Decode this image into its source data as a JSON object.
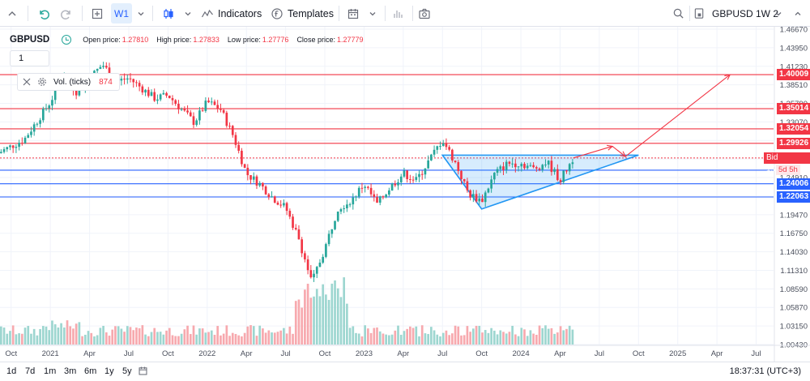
{
  "toolbar": {
    "timeframe": "W1",
    "indicators_label": "Indicators",
    "templates_label": "Templates",
    "symbol_box": "GBPUSD 1W 2"
  },
  "legend": {
    "symbol": "GBPUSD",
    "open_label": "Open price:",
    "open_value": "1.27810",
    "high_label": "High price:",
    "high_value": "1.27833",
    "low_label": "Low price:",
    "low_value": "1.27776",
    "close_label": "Close price:",
    "close_value": "1.27779",
    "multiplier": "1"
  },
  "volume_pane": {
    "label": "Vol. (ticks)",
    "value": "874"
  },
  "price_tags": [
    {
      "text": "1.40009",
      "price": 1.40009,
      "color": "#f23645"
    },
    {
      "text": "1.35014",
      "price": 1.35014,
      "color": "#f23645"
    },
    {
      "text": "1.32054",
      "price": 1.32054,
      "color": "#f23645"
    },
    {
      "text": "1.29926",
      "price": 1.29926,
      "color": "#f23645"
    },
    {
      "text": "1.24006",
      "price": 1.24006,
      "color": "#2962ff"
    },
    {
      "text": "1.22063",
      "price": 1.22063,
      "color": "#2962ff"
    }
  ],
  "bid_tag": "Bid 1.27779",
  "countdown": "5d 5h",
  "bottom": {
    "ranges": [
      "1d",
      "7d",
      "1m",
      "3m",
      "6m",
      "1y",
      "5y"
    ],
    "time": "18:37:31 (UTC+3)"
  },
  "colors": {
    "up": "#26a69a",
    "down": "#f23645",
    "resistance": "#f23645",
    "support": "#2962ff"
  },
  "chart_data": {
    "type": "candlestick",
    "symbol": "GBPUSD",
    "timeframe": "W1",
    "y_ticks": [
      "1.46670",
      "1.43950",
      "1.41230",
      "1.38510",
      "1.35790",
      "1.33070",
      "1.30350",
      "1.27630",
      "1.24910",
      "1.22190",
      "1.19470",
      "1.16750",
      "1.14030",
      "1.11310",
      "1.08590",
      "1.05870",
      "1.03150",
      "1.00430"
    ],
    "ylim": [
      1.0043,
      1.4667
    ],
    "x_ticks": [
      "Oct",
      "2021",
      "Apr",
      "Jul",
      "Oct",
      "2022",
      "Apr",
      "Jul",
      "Oct",
      "2023",
      "Apr",
      "Jul",
      "Oct",
      "2024",
      "Apr",
      "Jul",
      "Oct",
      "2025",
      "Apr",
      "Jul"
    ],
    "xlim": [
      "2020-10",
      "2025-07"
    ],
    "price_path": [
      [
        "2020-09",
        1.285
      ],
      [
        "2020-11",
        1.305
      ],
      [
        "2021-01",
        1.36
      ],
      [
        "2021-02",
        1.4
      ],
      [
        "2021-03",
        1.375
      ],
      [
        "2021-05",
        1.415
      ],
      [
        "2021-06",
        1.39
      ],
      [
        "2021-07",
        1.395
      ],
      [
        "2021-09",
        1.365
      ],
      [
        "2021-10",
        1.37
      ],
      [
        "2021-12",
        1.33
      ],
      [
        "2022-01",
        1.36
      ],
      [
        "2022-02",
        1.35
      ],
      [
        "2022-03",
        1.31
      ],
      [
        "2022-04",
        1.255
      ],
      [
        "2022-05",
        1.24
      ],
      [
        "2022-06",
        1.22
      ],
      [
        "2022-07",
        1.205
      ],
      [
        "2022-08",
        1.16
      ],
      [
        "2022-09",
        1.095
      ],
      [
        "2022-10",
        1.145
      ],
      [
        "2022-11",
        1.205
      ],
      [
        "2022-12",
        1.215
      ],
      [
        "2023-01",
        1.24
      ],
      [
        "2023-02",
        1.21
      ],
      [
        "2023-03",
        1.235
      ],
      [
        "2023-04",
        1.255
      ],
      [
        "2023-05",
        1.245
      ],
      [
        "2023-06",
        1.275
      ],
      [
        "2023-07",
        1.305
      ],
      [
        "2023-08",
        1.27
      ],
      [
        "2023-09",
        1.225
      ],
      [
        "2023-10",
        1.215
      ],
      [
        "2023-11",
        1.255
      ],
      [
        "2023-12",
        1.27
      ],
      [
        "2024-01",
        1.27
      ],
      [
        "2024-02",
        1.262
      ],
      [
        "2024-03",
        1.272
      ],
      [
        "2024-04",
        1.245
      ],
      [
        "2024-05",
        1.2778
      ]
    ],
    "horizontal_levels": [
      {
        "price": 1.40009,
        "role": "resistance"
      },
      {
        "price": 1.35014,
        "role": "resistance"
      },
      {
        "price": 1.32054,
        "role": "resistance"
      },
      {
        "price": 1.29926,
        "role": "resistance"
      },
      {
        "price": 1.27779,
        "role": "bid"
      },
      {
        "price": 1.26,
        "role": "support"
      },
      {
        "price": 1.24006,
        "role": "support"
      },
      {
        "price": 1.22063,
        "role": "support"
      }
    ],
    "triangle": [
      [
        "2023-07",
        1.282
      ],
      [
        "2023-10",
        1.203
      ],
      [
        "2024-10",
        1.282
      ]
    ],
    "projection": [
      [
        "2024-05",
        1.2778
      ],
      [
        "2024-08",
        1.295
      ],
      [
        "2024-09",
        1.28
      ],
      [
        "2025-05",
        1.4
      ]
    ],
    "volume_pane": true,
    "grid": true
  }
}
